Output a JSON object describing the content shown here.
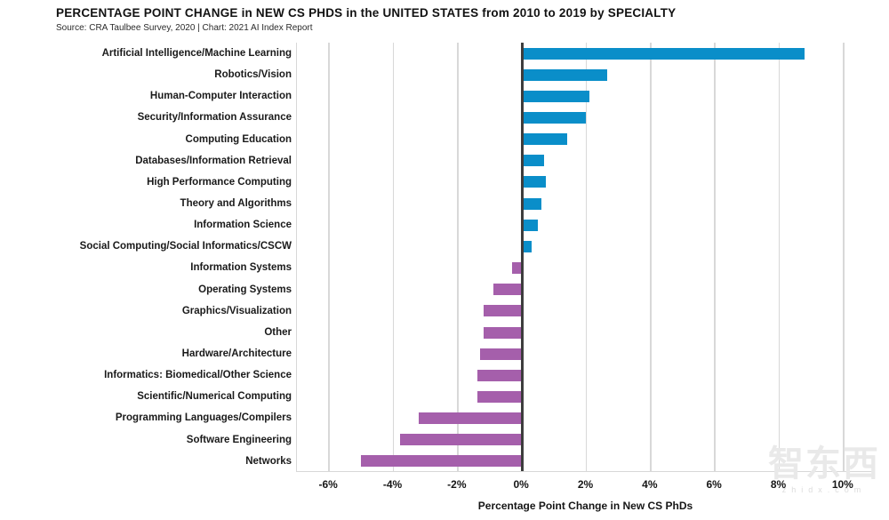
{
  "header": {
    "title": "PERCENTAGE POINT CHANGE in NEW CS PHDS in the UNITED STATES from 2010 to 2019 by SPECIALTY",
    "source": "Source: CRA Taulbee Survey, 2020 | Chart: 2021 AI Index Report"
  },
  "watermark": {
    "text": "智东西",
    "subtext": "zhidx.com"
  },
  "chart_data": {
    "type": "bar",
    "orientation": "horizontal",
    "title": "PERCENTAGE POINT CHANGE in NEW CS PHDS in the UNITED STATES from 2010 to 2019 by SPECIALTY",
    "xlabel": "Percentage Point Change in New CS PhDs",
    "categories": [
      "Artificial Intelligence/Machine Learning",
      "Robotics/Vision",
      "Human-Computer Interaction",
      "Security/Information Assurance",
      "Computing Education",
      "Databases/Information Retrieval",
      "High Performance Computing",
      "Theory and Algorithms",
      "Information Science",
      "Social Computing/Social Informatics/CSCW",
      "Information Systems",
      "Operating Systems",
      "Graphics/Visualization",
      "Other",
      "Hardware/Architecture",
      "Informatics: Biomedical/Other Science",
      "Scientific/Numerical Computing",
      "Programming Languages/Compilers",
      "Software Engineering",
      "Networks"
    ],
    "values": [
      8.8,
      2.65,
      2.1,
      2.0,
      1.4,
      0.7,
      0.75,
      0.6,
      0.5,
      0.3,
      -0.3,
      -0.9,
      -1.2,
      -1.2,
      -1.3,
      -1.4,
      -1.4,
      -3.2,
      -3.8,
      -5.0
    ],
    "xlim": [
      -7,
      11
    ],
    "xticks": [
      -6,
      -4,
      -2,
      0,
      2,
      4,
      6,
      8,
      10
    ],
    "tick_suffix": "%",
    "grid": true,
    "legend": "none",
    "positive_color": "#0a8ec9",
    "negative_color": "#a55fab",
    "zero_axis_color": "#3d3d3d",
    "gridline_color": "#d8d8d8"
  }
}
